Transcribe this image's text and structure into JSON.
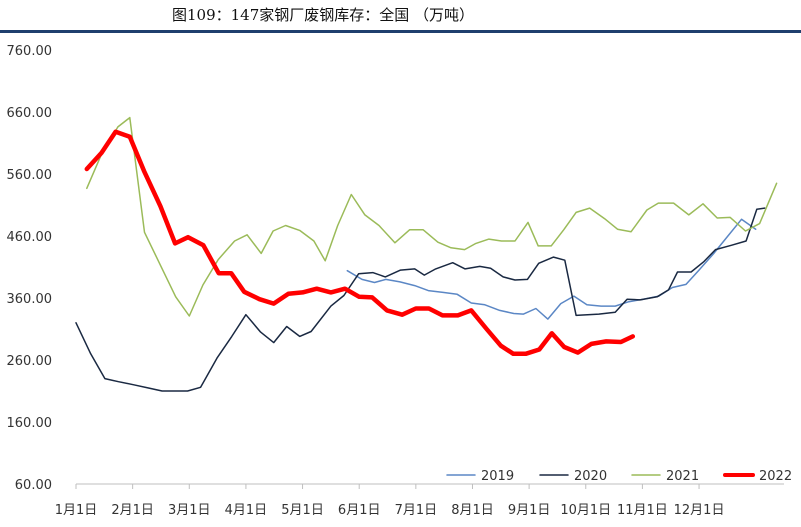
{
  "chart_data": {
    "type": "line",
    "title": "图109：147家钢厂废钢库存：全国 （万吨）",
    "ylim": [
      60,
      760
    ],
    "yticks": [
      "60.00",
      "160.00",
      "260.00",
      "360.00",
      "460.00",
      "560.00",
      "660.00",
      "760.00"
    ],
    "x_range": [
      0,
      12.5
    ],
    "xticks": [
      {
        "label": "1月1日",
        "value": 0
      },
      {
        "label": "2月1日",
        "value": 1
      },
      {
        "label": "3月1日",
        "value": 2
      },
      {
        "label": "4月1日",
        "value": 3
      },
      {
        "label": "5月1日",
        "value": 4
      },
      {
        "label": "6月1日",
        "value": 5
      },
      {
        "label": "7月1日",
        "value": 6
      },
      {
        "label": "8月1日",
        "value": 7
      },
      {
        "label": "9月1日",
        "value": 8
      },
      {
        "label": "10月1日",
        "value": 9
      },
      {
        "label": "11月1日",
        "value": 10
      },
      {
        "label": "12月1日",
        "value": 11
      }
    ],
    "grid": false,
    "legend_position": "bottom-right",
    "series": [
      {
        "name": "2019",
        "color": "#5b87c5",
        "width": 1.5,
        "points": [
          [
            4.79,
            404
          ],
          [
            5.05,
            390
          ],
          [
            5.27,
            385
          ],
          [
            5.47,
            390
          ],
          [
            5.72,
            386
          ],
          [
            5.98,
            380
          ],
          [
            6.22,
            372
          ],
          [
            6.48,
            369
          ],
          [
            6.73,
            366
          ],
          [
            6.98,
            352
          ],
          [
            7.22,
            349
          ],
          [
            7.48,
            340
          ],
          [
            7.73,
            335
          ],
          [
            7.9,
            334
          ],
          [
            8.12,
            343
          ],
          [
            8.33,
            326
          ],
          [
            8.56,
            351
          ],
          [
            8.79,
            363
          ],
          [
            9.02,
            349
          ],
          [
            9.27,
            347
          ],
          [
            9.52,
            347
          ],
          [
            9.76,
            354
          ],
          [
            10.02,
            358
          ],
          [
            10.29,
            363
          ],
          [
            10.53,
            377
          ],
          [
            10.77,
            382
          ],
          [
            11.0,
            405
          ],
          [
            11.26,
            432
          ],
          [
            11.51,
            460
          ],
          [
            11.75,
            487
          ],
          [
            12.0,
            471
          ]
        ]
      },
      {
        "name": "2020",
        "color": "#1a2942",
        "width": 1.5,
        "points": [
          [
            0.0,
            320
          ],
          [
            0.26,
            270
          ],
          [
            0.51,
            230
          ],
          [
            0.75,
            225
          ],
          [
            1.02,
            220
          ],
          [
            1.27,
            215
          ],
          [
            1.52,
            210
          ],
          [
            1.75,
            210
          ],
          [
            1.97,
            210
          ],
          [
            2.2,
            216
          ],
          [
            2.49,
            263
          ],
          [
            2.75,
            298
          ],
          [
            3.0,
            333
          ],
          [
            3.26,
            305
          ],
          [
            3.49,
            288
          ],
          [
            3.72,
            314
          ],
          [
            3.95,
            298
          ],
          [
            4.15,
            306
          ],
          [
            4.5,
            347
          ],
          [
            4.73,
            364
          ],
          [
            4.99,
            399
          ],
          [
            5.24,
            401
          ],
          [
            5.46,
            394
          ],
          [
            5.73,
            405
          ],
          [
            5.98,
            407
          ],
          [
            6.15,
            397
          ],
          [
            6.35,
            407
          ],
          [
            6.65,
            417
          ],
          [
            6.87,
            407
          ],
          [
            7.13,
            411
          ],
          [
            7.32,
            408
          ],
          [
            7.54,
            394
          ],
          [
            7.75,
            389
          ],
          [
            7.97,
            390
          ],
          [
            8.17,
            416
          ],
          [
            8.43,
            426
          ],
          [
            8.63,
            421
          ],
          [
            8.83,
            332
          ],
          [
            9.23,
            334
          ],
          [
            9.52,
            337
          ],
          [
            9.73,
            358
          ],
          [
            9.96,
            357
          ],
          [
            10.26,
            362
          ],
          [
            10.46,
            373
          ],
          [
            10.62,
            402
          ],
          [
            10.86,
            402
          ],
          [
            11.09,
            419
          ],
          [
            11.29,
            438
          ],
          [
            11.57,
            445
          ],
          [
            11.83,
            452
          ],
          [
            12.02,
            503
          ],
          [
            12.16,
            505
          ]
        ]
      },
      {
        "name": "2021",
        "color": "#9bbb59",
        "width": 1.5,
        "points": [
          [
            0.19,
            537
          ],
          [
            0.45,
            592
          ],
          [
            0.74,
            636
          ],
          [
            0.95,
            651
          ],
          [
            1.21,
            466
          ],
          [
            1.5,
            411
          ],
          [
            1.76,
            362
          ],
          [
            2.0,
            331
          ],
          [
            2.24,
            381
          ],
          [
            2.51,
            422
          ],
          [
            2.8,
            452
          ],
          [
            3.02,
            462
          ],
          [
            3.27,
            432
          ],
          [
            3.48,
            468
          ],
          [
            3.7,
            477
          ],
          [
            3.95,
            469
          ],
          [
            4.2,
            452
          ],
          [
            4.4,
            420
          ],
          [
            4.62,
            477
          ],
          [
            4.86,
            527
          ],
          [
            5.1,
            494
          ],
          [
            5.35,
            477
          ],
          [
            5.63,
            449
          ],
          [
            5.89,
            470
          ],
          [
            6.13,
            470
          ],
          [
            6.39,
            450
          ],
          [
            6.62,
            441
          ],
          [
            6.86,
            438
          ],
          [
            7.06,
            448
          ],
          [
            7.29,
            455
          ],
          [
            7.51,
            452
          ],
          [
            7.75,
            452
          ],
          [
            7.98,
            482
          ],
          [
            8.16,
            444
          ],
          [
            8.39,
            444
          ],
          [
            8.61,
            470
          ],
          [
            8.83,
            498
          ],
          [
            9.07,
            505
          ],
          [
            9.33,
            488
          ],
          [
            9.56,
            471
          ],
          [
            9.8,
            467
          ],
          [
            10.08,
            502
          ],
          [
            10.28,
            513
          ],
          [
            10.55,
            513
          ],
          [
            10.82,
            494
          ],
          [
            11.07,
            512
          ],
          [
            11.32,
            489
          ],
          [
            11.55,
            490
          ],
          [
            11.82,
            468
          ],
          [
            12.07,
            480
          ],
          [
            12.37,
            545
          ]
        ]
      },
      {
        "name": "2022",
        "color": "#ff0000",
        "width": 4.5,
        "points": [
          [
            0.19,
            568
          ],
          [
            0.45,
            594
          ],
          [
            0.7,
            628
          ],
          [
            0.95,
            620
          ],
          [
            1.2,
            565
          ],
          [
            1.49,
            508
          ],
          [
            1.75,
            448
          ],
          [
            1.98,
            458
          ],
          [
            2.25,
            445
          ],
          [
            2.52,
            400
          ],
          [
            2.74,
            400
          ],
          [
            2.97,
            370
          ],
          [
            3.24,
            358
          ],
          [
            3.49,
            351
          ],
          [
            3.75,
            367
          ],
          [
            4.0,
            369
          ],
          [
            4.25,
            375
          ],
          [
            4.5,
            369
          ],
          [
            4.75,
            375
          ],
          [
            5.0,
            362
          ],
          [
            5.23,
            361
          ],
          [
            5.49,
            340
          ],
          [
            5.76,
            333
          ],
          [
            6.0,
            343
          ],
          [
            6.23,
            343
          ],
          [
            6.47,
            332
          ],
          [
            6.74,
            332
          ],
          [
            6.98,
            340
          ],
          [
            7.25,
            310
          ],
          [
            7.5,
            283
          ],
          [
            7.72,
            270
          ],
          [
            7.94,
            270
          ],
          [
            8.18,
            277
          ],
          [
            8.4,
            303
          ],
          [
            8.62,
            281
          ],
          [
            8.86,
            272
          ],
          [
            9.1,
            286
          ],
          [
            9.36,
            290
          ],
          [
            9.62,
            289
          ],
          [
            9.83,
            298
          ]
        ]
      }
    ]
  }
}
